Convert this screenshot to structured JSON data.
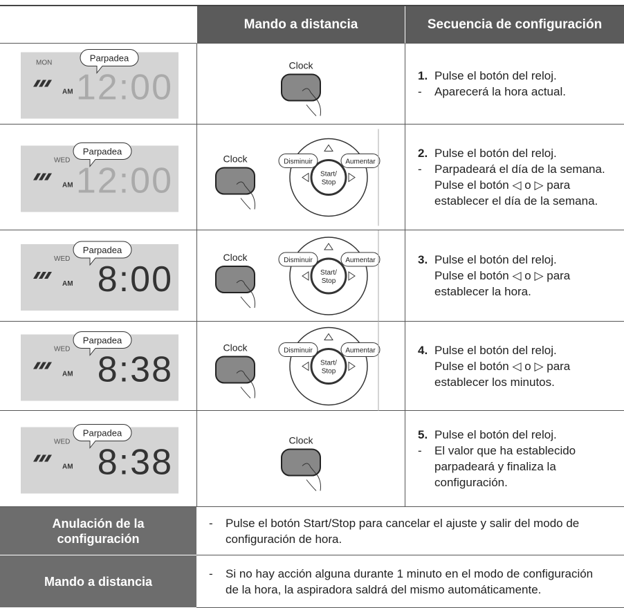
{
  "table": {
    "header": [
      "Mando a distancia",
      "Secuencia de configuración"
    ],
    "rows": [
      {
        "lcd": {
          "day": "MON",
          "callout": "Parpadea",
          "period": "AM",
          "digits": "12:00"
        },
        "remote": {
          "clock": "Clock"
        },
        "step": {
          "number": "1.",
          "main": "Pulse el botón del reloj.",
          "notes": [
            "Aparecerá la hora actual."
          ]
        }
      },
      {
        "lcd": {
          "day": "WED",
          "callout": "Parpadea",
          "period": "AM",
          "digits": "12:00"
        },
        "remote": {
          "clock": "Clock",
          "left": "Disminuir",
          "right": "Aumentar",
          "center": "Start/ Stop"
        },
        "step": {
          "number": "2.",
          "main": "Pulse el botón del reloj.",
          "notes": [
            "Parpadeará el día de la semana. Pulse el botón ◁ o ▷ para establecer el día de la semana."
          ]
        }
      },
      {
        "lcd": {
          "day": "WED",
          "callout": "Parpadea",
          "period": "AM",
          "digits": "8:00"
        },
        "remote": {
          "clock": "Clock",
          "left": "Disminuir",
          "right": "Aumentar",
          "center": "Start/ Stop"
        },
        "step": {
          "number": "3.",
          "main": "Pulse el botón del reloj.",
          "detail": "Pulse el botón ◁ o ▷ para establecer la hora."
        }
      },
      {
        "lcd": {
          "day": "WED",
          "callout": "Parpadea",
          "period": "AM",
          "digits": "8:38"
        },
        "remote": {
          "clock": "Clock",
          "left": "Disminuir",
          "right": "Aumentar",
          "center": "Start/ Stop"
        },
        "step": {
          "number": "4.",
          "main": "Pulse el botón del reloj.",
          "detail": "Pulse el botón ◁ o ▷ para establecer los minutos."
        }
      },
      {
        "lcd": {
          "day": "WED",
          "callout": "Parpadea",
          "period": "AM",
          "digits": "8:38"
        },
        "remote": {
          "clock": "Clock"
        },
        "step": {
          "number": "5.",
          "main": "Pulse el botón del reloj.",
          "notes": [
            "El valor que ha establecido parpadeará y finaliza la configuración."
          ]
        }
      }
    ],
    "footer": [
      {
        "label": "Anulación de la configuración",
        "text": "Pulse el botón Start/Stop para cancelar el ajuste y salir del modo de configuración de hora."
      },
      {
        "label": "Mando a distancia",
        "text": "Si no hay acción alguna durante 1 minuto en el modo de configuración de la hora, la aspiradora saldrá del mismo automáticamente."
      }
    ]
  }
}
